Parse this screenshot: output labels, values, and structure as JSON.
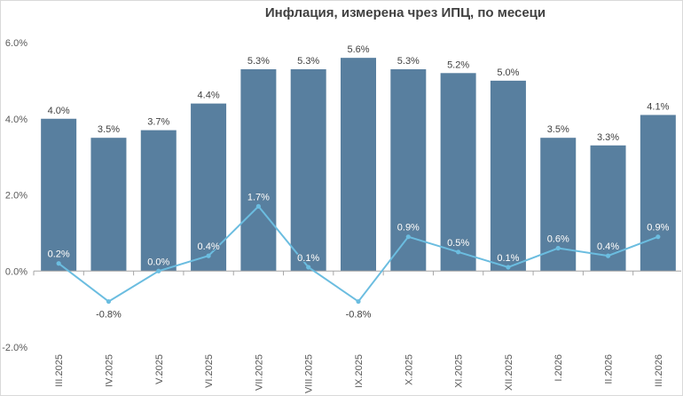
{
  "chart_data": {
    "type": "bar",
    "title": "Инфлация, измерена чрез ИПЦ, по месеци",
    "categories": [
      "III.2025",
      "IV.2025",
      "V.2025",
      "VI.2025",
      "VII.2025",
      "VIII.2025",
      "IX.2025",
      "X.2025",
      "XI.2025",
      "XII.2025",
      "I.2026",
      "II.2026",
      "III.2026"
    ],
    "series": [
      {
        "type": "bar",
        "color": "#587f9f",
        "values": [
          4.0,
          3.5,
          3.7,
          4.4,
          5.3,
          5.3,
          5.6,
          5.3,
          5.2,
          5.0,
          3.5,
          3.3,
          4.1
        ],
        "labels": [
          "4.0%",
          "3.5%",
          "3.7%",
          "4.4%",
          "5.3%",
          "5.3%",
          "5.6%",
          "5.3%",
          "5.2%",
          "5.0%",
          "3.5%",
          "3.3%",
          "4.1%"
        ]
      },
      {
        "type": "line",
        "color": "#6bbde0",
        "values": [
          0.2,
          -0.8,
          0.0,
          0.4,
          1.7,
          0.1,
          -0.8,
          0.9,
          0.5,
          0.1,
          0.6,
          0.4,
          0.9
        ],
        "labels": [
          "0.2%",
          "-0.8%",
          "0.0%",
          "0.4%",
          "1.7%",
          "0.1%",
          "-0.8%",
          "0.9%",
          "0.5%",
          "0.1%",
          "0.6%",
          "0.4%",
          "0.9%"
        ]
      }
    ],
    "ylim": [
      -2.0,
      6.0
    ],
    "yticks": [
      -2.0,
      0.0,
      2.0,
      4.0,
      6.0
    ],
    "ytick_labels": [
      "-2.0%",
      "0.0%",
      "2.0%",
      "4.0%",
      "6.0%"
    ],
    "grid": false,
    "legend": "none"
  }
}
